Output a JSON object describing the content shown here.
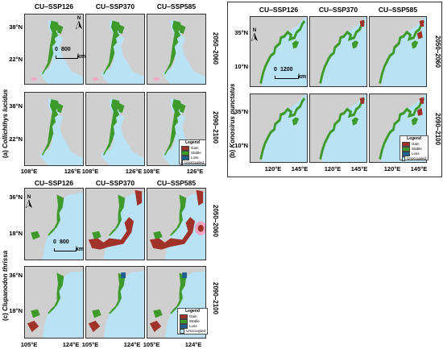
{
  "columns": [
    "CU–SSP126",
    "CU–SSP370",
    "CU–SSP585"
  ],
  "periods": [
    "2050–2060",
    "2090–2100"
  ],
  "blocks": [
    {
      "letter": "(a)",
      "species": "Collichthys lucidus",
      "lat_labels": [
        "38°N",
        "22°N"
      ],
      "lon_labels": [
        "108°E",
        "126°E"
      ],
      "scale_value": "800",
      "scale_unit": "km"
    },
    {
      "letter": "(b)",
      "species": "Konosirus punctatus",
      "lat_labels": [
        "35°N",
        "10°N"
      ],
      "lon_labels": [
        "120°E",
        "145°E"
      ],
      "scale_value": "1200",
      "scale_unit": "km"
    },
    {
      "letter": "(c)",
      "species": "Clupanodon thrissa",
      "lat_labels": [
        "36°N",
        "18°N"
      ],
      "lon_labels": [
        "105°E",
        "124°E"
      ],
      "scale_value": "800",
      "scale_unit": "km"
    }
  ],
  "north": "N",
  "legend": {
    "title": "Legend",
    "items": [
      {
        "label": "Gain",
        "color": "#a0322a"
      },
      {
        "label": "Stable",
        "color": "#3e9a2a"
      },
      {
        "label": "Loss",
        "color": "#1f5f8f"
      },
      {
        "label": "Unoccupied",
        "color": "#b9e2f5"
      }
    ]
  },
  "colors": {
    "land": "#cfcfcf",
    "unoccupied": "#b9e2f5",
    "stable": "#3e9a2a",
    "gain": "#a0322a",
    "loss": "#1f5f8f",
    "pink": "#f3a6c4"
  }
}
